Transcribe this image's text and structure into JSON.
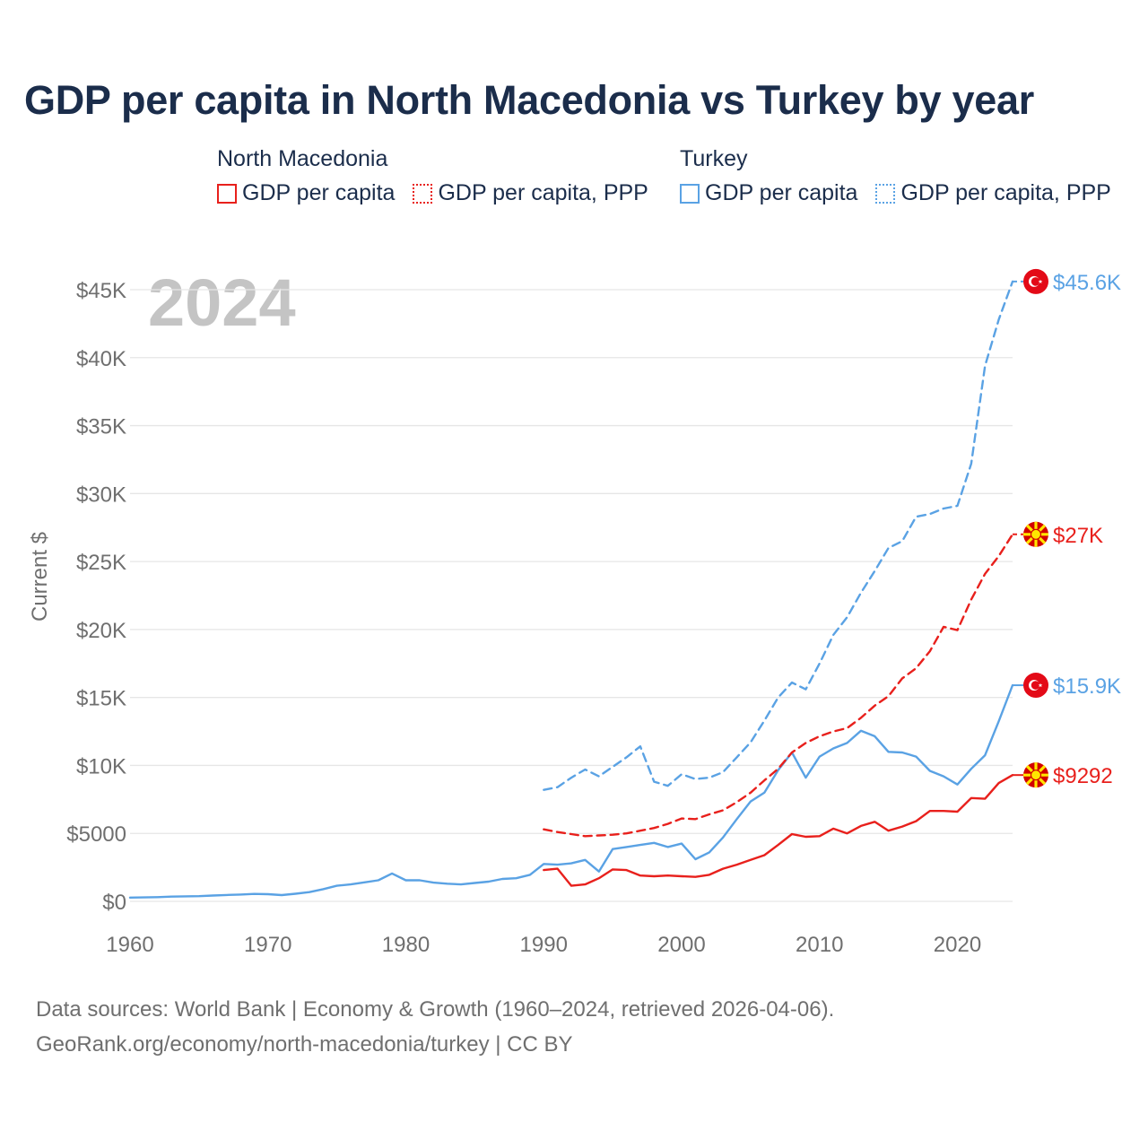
{
  "title": "GDP per capita in North Macedonia vs Turkey by year",
  "legend": {
    "groups": [
      {
        "country": "North Macedonia",
        "items": [
          "GDP per capita",
          "GDP per capita, PPP"
        ]
      },
      {
        "country": "Turkey",
        "items": [
          "GDP per capita",
          "GDP per capita, PPP"
        ]
      }
    ]
  },
  "year_label": "2024",
  "source": {
    "line1": "Data sources: World Bank | Economy & Growth (1960–2024, retrieved 2026-04-06).",
    "line2": "GeoRank.org/economy/north-macedonia/turkey | CC BY"
  },
  "colors": {
    "north_macedonia": "#e8201c",
    "turkey": "#5aa2e4"
  },
  "chart_data": {
    "type": "line",
    "title": "GDP per capita in North Macedonia vs Turkey by year",
    "xlabel": "",
    "ylabel": "Current $",
    "xlim": [
      1960,
      2024
    ],
    "ylim": [
      0,
      45000
    ],
    "xticks": [
      1960,
      1970,
      1980,
      1990,
      2000,
      2010,
      2020
    ],
    "xtick_labels": [
      "1960",
      "1970",
      "1980",
      "1990",
      "2000",
      "2010",
      "2020"
    ],
    "yticks": [
      0,
      5000,
      10000,
      15000,
      20000,
      25000,
      30000,
      35000,
      40000,
      45000
    ],
    "ytick_labels": [
      "$0",
      "$5000",
      "$10K",
      "$15K",
      "$20K",
      "$25K",
      "$30K",
      "$35K",
      "$40K",
      "$45K"
    ],
    "grid": true,
    "series": [
      {
        "name": "Turkey GDP per capita",
        "country": "turkey",
        "style": "solid",
        "end_label": "$15.9K",
        "x": [
          1960,
          1961,
          1962,
          1963,
          1964,
          1965,
          1966,
          1967,
          1968,
          1969,
          1970,
          1971,
          1972,
          1973,
          1974,
          1975,
          1976,
          1977,
          1978,
          1979,
          1980,
          1981,
          1982,
          1983,
          1984,
          1985,
          1986,
          1987,
          1988,
          1989,
          1990,
          1991,
          1992,
          1993,
          1994,
          1995,
          1996,
          1997,
          1998,
          1999,
          2000,
          2001,
          2002,
          2003,
          2004,
          2005,
          2006,
          2007,
          2008,
          2009,
          2010,
          2011,
          2012,
          2013,
          2014,
          2015,
          2016,
          2017,
          2018,
          2019,
          2020,
          2021,
          2022,
          2023,
          2024
        ],
        "values": [
          280,
          290,
          310,
          350,
          370,
          380,
          430,
          470,
          500,
          550,
          530,
          460,
          560,
          680,
          900,
          1150,
          1250,
          1400,
          1550,
          2050,
          1550,
          1550,
          1380,
          1300,
          1250,
          1350,
          1450,
          1650,
          1700,
          1950,
          2750,
          2700,
          2800,
          3050,
          2200,
          3850,
          4000,
          4150,
          4300,
          4000,
          4250,
          3100,
          3600,
          4700,
          6050,
          7350,
          8000,
          9650,
          10950,
          9100,
          10650,
          11250,
          11650,
          12550,
          12150,
          11000,
          10950,
          10650,
          9600,
          9200,
          8600,
          9750,
          10750,
          13250,
          15900
        ]
      },
      {
        "name": "Turkey GDP per capita, PPP",
        "country": "turkey",
        "style": "dashed",
        "end_label": "$45.6K",
        "x": [
          1990,
          1991,
          1992,
          1993,
          1994,
          1995,
          1996,
          1997,
          1998,
          1999,
          2000,
          2001,
          2002,
          2003,
          2004,
          2005,
          2006,
          2007,
          2008,
          2009,
          2010,
          2011,
          2012,
          2013,
          2014,
          2015,
          2016,
          2017,
          2018,
          2019,
          2020,
          2021,
          2022,
          2023,
          2024
        ],
        "values": [
          8200,
          8400,
          9100,
          9700,
          9200,
          9900,
          10600,
          11400,
          8800,
          8500,
          9350,
          9000,
          9100,
          9500,
          10600,
          11700,
          13300,
          15000,
          16100,
          15600,
          17500,
          19600,
          20900,
          22700,
          24300,
          26000,
          26500,
          28300,
          28500,
          28900,
          29100,
          32200,
          39400,
          42800,
          45600
        ]
      },
      {
        "name": "North Macedonia GDP per capita",
        "country": "north_macedonia",
        "style": "solid",
        "end_label": "$9292",
        "x": [
          1990,
          1991,
          1992,
          1993,
          1994,
          1995,
          1996,
          1997,
          1998,
          1999,
          2000,
          2001,
          2002,
          2003,
          2004,
          2005,
          2006,
          2007,
          2008,
          2009,
          2010,
          2011,
          2012,
          2013,
          2014,
          2015,
          2016,
          2017,
          2018,
          2019,
          2020,
          2021,
          2022,
          2023,
          2024
        ],
        "values": [
          2300,
          2400,
          1150,
          1250,
          1700,
          2350,
          2300,
          1900,
          1850,
          1900,
          1850,
          1800,
          1950,
          2400,
          2700,
          3050,
          3400,
          4150,
          4950,
          4750,
          4800,
          5350,
          5000,
          5550,
          5850,
          5200,
          5500,
          5900,
          6650,
          6650,
          6600,
          7600,
          7550,
          8700,
          9292
        ]
      },
      {
        "name": "North Macedonia GDP per capita, PPP",
        "country": "north_macedonia",
        "style": "dashed",
        "end_label": "$27K",
        "x": [
          1990,
          1991,
          1992,
          1993,
          1994,
          1995,
          1996,
          1997,
          1998,
          1999,
          2000,
          2001,
          2002,
          2003,
          2004,
          2005,
          2006,
          2007,
          2008,
          2009,
          2010,
          2011,
          2012,
          2013,
          2014,
          2015,
          2016,
          2017,
          2018,
          2019,
          2020,
          2021,
          2022,
          2023,
          2024
        ],
        "values": [
          5300,
          5100,
          4950,
          4800,
          4850,
          4900,
          5000,
          5200,
          5400,
          5700,
          6100,
          6050,
          6400,
          6700,
          7300,
          8000,
          8900,
          9750,
          10950,
          11650,
          12150,
          12500,
          12750,
          13500,
          14400,
          15100,
          16400,
          17150,
          18400,
          20200,
          19950,
          22200,
          24100,
          25400,
          27000
        ]
      }
    ]
  }
}
